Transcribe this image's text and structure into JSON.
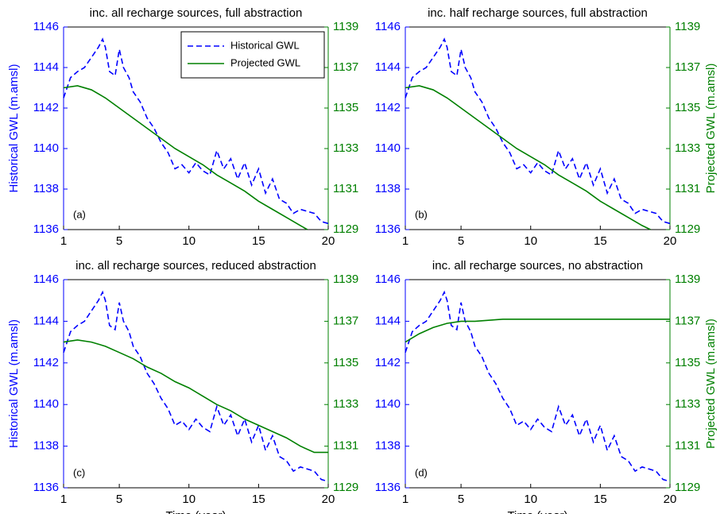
{
  "chart_data": [
    {
      "type": "line",
      "title": "inc. all recharge sources, full abstraction",
      "annotation": "(a)",
      "ylabel": "Historical GWL (m.amsl)",
      "legend": "upper right",
      "xlim": [
        1,
        20
      ],
      "xticks": [
        1,
        5,
        10,
        15,
        20
      ],
      "ylim": [
        1136,
        1146
      ],
      "yticks": [
        1136,
        1138,
        1140,
        1142,
        1144,
        1146
      ],
      "y2lim": [
        1129,
        1139
      ],
      "y2ticks": [
        1129,
        1131,
        1133,
        1135,
        1137,
        1139
      ],
      "series": [
        {
          "name": "Historical GWL",
          "color": "#0000ff",
          "dash": true,
          "axis": "y",
          "x": [
            1,
            1.5,
            2,
            2.5,
            3,
            3.5,
            3.8,
            4,
            4.3,
            4.7,
            5,
            5.3,
            5.7,
            6,
            6.5,
            7,
            7.5,
            8,
            8.5,
            9,
            9.5,
            10,
            10.5,
            11,
            11.5,
            12,
            12.5,
            13,
            13.5,
            14,
            14.5,
            15,
            15.5,
            16,
            16.5,
            17,
            17.5,
            18,
            18.5,
            19,
            19.5,
            20
          ],
          "values": [
            1142.5,
            1143.5,
            1143.8,
            1144.0,
            1144.5,
            1145.0,
            1145.4,
            1145.0,
            1143.8,
            1143.6,
            1144.9,
            1144.0,
            1143.5,
            1142.8,
            1142.3,
            1141.5,
            1141.0,
            1140.3,
            1139.8,
            1139.0,
            1139.2,
            1138.8,
            1139.3,
            1138.9,
            1138.7,
            1139.9,
            1139.0,
            1139.5,
            1138.5,
            1139.3,
            1138.2,
            1139.0,
            1137.8,
            1138.5,
            1137.5,
            1137.3,
            1136.8,
            1137.0,
            1136.9,
            1136.8,
            1136.4,
            1136.3
          ]
        },
        {
          "name": "Projected GWL",
          "color": "#008000",
          "dash": false,
          "axis": "y2",
          "x": [
            1,
            2,
            3,
            4,
            5,
            6,
            7,
            8,
            9,
            10,
            11,
            12,
            13,
            14,
            15,
            16,
            17,
            18,
            18.5
          ],
          "values": [
            1136.0,
            1136.1,
            1135.9,
            1135.5,
            1135.0,
            1134.5,
            1134.0,
            1133.5,
            1133.0,
            1132.6,
            1132.2,
            1131.7,
            1131.3,
            1130.9,
            1130.4,
            1130.0,
            1129.6,
            1129.2,
            1129.0
          ]
        }
      ]
    },
    {
      "type": "line",
      "title": "inc. half recharge sources, full abstraction",
      "annotation": "(b)",
      "y2label": "Projected GWL (m.amsl)",
      "xlim": [
        1,
        20
      ],
      "xticks": [
        1,
        5,
        10,
        15,
        20
      ],
      "ylim": [
        1136,
        1146
      ],
      "yticks": [
        1136,
        1138,
        1140,
        1142,
        1144,
        1146
      ],
      "y2lim": [
        1129,
        1139
      ],
      "y2ticks": [
        1129,
        1131,
        1133,
        1135,
        1137,
        1139
      ],
      "series": [
        {
          "color": "#0000ff",
          "dash": true,
          "axis": "y",
          "x": [
            1,
            1.5,
            2,
            2.5,
            3,
            3.5,
            3.8,
            4,
            4.3,
            4.7,
            5,
            5.3,
            5.7,
            6,
            6.5,
            7,
            7.5,
            8,
            8.5,
            9,
            9.5,
            10,
            10.5,
            11,
            11.5,
            12,
            12.5,
            13,
            13.5,
            14,
            14.5,
            15,
            15.5,
            16,
            16.5,
            17,
            17.5,
            18,
            18.5,
            19,
            19.5,
            20
          ],
          "values": [
            1142.5,
            1143.5,
            1143.8,
            1144.0,
            1144.5,
            1145.0,
            1145.4,
            1145.0,
            1143.8,
            1143.6,
            1144.9,
            1144.0,
            1143.5,
            1142.8,
            1142.3,
            1141.5,
            1141.0,
            1140.3,
            1139.8,
            1139.0,
            1139.2,
            1138.8,
            1139.3,
            1138.9,
            1138.7,
            1139.9,
            1139.0,
            1139.5,
            1138.5,
            1139.3,
            1138.2,
            1139.0,
            1137.8,
            1138.5,
            1137.5,
            1137.3,
            1136.8,
            1137.0,
            1136.9,
            1136.8,
            1136.4,
            1136.3
          ]
        },
        {
          "color": "#008000",
          "dash": false,
          "axis": "y2",
          "x": [
            1,
            2,
            3,
            4,
            5,
            6,
            7,
            8,
            9,
            10,
            11,
            12,
            13,
            14,
            15,
            16,
            17,
            18,
            18.6
          ],
          "values": [
            1136.0,
            1136.1,
            1135.9,
            1135.5,
            1135.0,
            1134.5,
            1134.0,
            1133.5,
            1133.0,
            1132.6,
            1132.2,
            1131.7,
            1131.3,
            1130.9,
            1130.4,
            1130.0,
            1129.6,
            1129.2,
            1129.0
          ]
        }
      ]
    },
    {
      "type": "line",
      "title": "inc. all recharge sources, reduced abstraction",
      "annotation": "(c)",
      "ylabel": "Historical GWL (m.amsl)",
      "xlabel": "Time (year)",
      "xlim": [
        1,
        20
      ],
      "xticks": [
        1,
        5,
        10,
        15,
        20
      ],
      "ylim": [
        1136,
        1146
      ],
      "yticks": [
        1136,
        1138,
        1140,
        1142,
        1144,
        1146
      ],
      "y2lim": [
        1129,
        1139
      ],
      "y2ticks": [
        1129,
        1131,
        1133,
        1135,
        1137,
        1139
      ],
      "series": [
        {
          "color": "#0000ff",
          "dash": true,
          "axis": "y",
          "x": [
            1,
            1.5,
            2,
            2.5,
            3,
            3.5,
            3.8,
            4,
            4.3,
            4.7,
            5,
            5.3,
            5.7,
            6,
            6.5,
            7,
            7.5,
            8,
            8.5,
            9,
            9.5,
            10,
            10.5,
            11,
            11.5,
            12,
            12.5,
            13,
            13.5,
            14,
            14.5,
            15,
            15.5,
            16,
            16.5,
            17,
            17.5,
            18,
            18.5,
            19,
            19.5,
            20
          ],
          "values": [
            1142.5,
            1143.5,
            1143.8,
            1144.0,
            1144.5,
            1145.0,
            1145.4,
            1145.0,
            1143.8,
            1143.6,
            1144.9,
            1144.0,
            1143.5,
            1142.8,
            1142.3,
            1141.5,
            1141.0,
            1140.3,
            1139.8,
            1139.0,
            1139.2,
            1138.8,
            1139.3,
            1138.9,
            1138.7,
            1139.9,
            1139.0,
            1139.5,
            1138.5,
            1139.3,
            1138.2,
            1139.0,
            1137.8,
            1138.5,
            1137.5,
            1137.3,
            1136.8,
            1137.0,
            1136.9,
            1136.8,
            1136.4,
            1136.3
          ]
        },
        {
          "color": "#008000",
          "dash": false,
          "axis": "y2",
          "x": [
            1,
            2,
            3,
            4,
            5,
            6,
            7,
            8,
            9,
            10,
            11,
            12,
            13,
            14,
            15,
            16,
            17,
            18,
            19,
            20
          ],
          "values": [
            1136.0,
            1136.1,
            1136.0,
            1135.8,
            1135.5,
            1135.2,
            1134.8,
            1134.5,
            1134.1,
            1133.8,
            1133.4,
            1133.0,
            1132.7,
            1132.3,
            1132.0,
            1131.7,
            1131.4,
            1131.0,
            1130.7,
            1130.7
          ]
        }
      ]
    },
    {
      "type": "line",
      "title": "inc. all recharge sources, no abstraction",
      "annotation": "(d)",
      "y2label": "Projected GWL (m.amsl)",
      "xlabel": "Time (year)",
      "xlim": [
        1,
        20
      ],
      "xticks": [
        1,
        5,
        10,
        15,
        20
      ],
      "ylim": [
        1136,
        1146
      ],
      "yticks": [
        1136,
        1138,
        1140,
        1142,
        1144,
        1146
      ],
      "y2lim": [
        1129,
        1139
      ],
      "y2ticks": [
        1129,
        1131,
        1133,
        1135,
        1137,
        1139
      ],
      "series": [
        {
          "color": "#0000ff",
          "dash": true,
          "axis": "y",
          "x": [
            1,
            1.5,
            2,
            2.5,
            3,
            3.5,
            3.8,
            4,
            4.3,
            4.7,
            5,
            5.3,
            5.7,
            6,
            6.5,
            7,
            7.5,
            8,
            8.5,
            9,
            9.5,
            10,
            10.5,
            11,
            11.5,
            12,
            12.5,
            13,
            13.5,
            14,
            14.5,
            15,
            15.5,
            16,
            16.5,
            17,
            17.5,
            18,
            18.5,
            19,
            19.5,
            20
          ],
          "values": [
            1142.5,
            1143.5,
            1143.8,
            1144.0,
            1144.5,
            1145.0,
            1145.4,
            1145.0,
            1143.8,
            1143.6,
            1144.9,
            1144.0,
            1143.5,
            1142.8,
            1142.3,
            1141.5,
            1141.0,
            1140.3,
            1139.8,
            1139.0,
            1139.2,
            1138.8,
            1139.3,
            1138.9,
            1138.7,
            1139.9,
            1139.0,
            1139.5,
            1138.5,
            1139.3,
            1138.2,
            1139.0,
            1137.8,
            1138.5,
            1137.5,
            1137.3,
            1136.8,
            1137.0,
            1136.9,
            1136.8,
            1136.4,
            1136.3
          ]
        },
        {
          "color": "#008000",
          "dash": false,
          "axis": "y2",
          "x": [
            1,
            2,
            3,
            4,
            5,
            6,
            8,
            10,
            12,
            15,
            20
          ],
          "values": [
            1136.0,
            1136.4,
            1136.7,
            1136.9,
            1137.0,
            1137.0,
            1137.1,
            1137.1,
            1137.1,
            1137.1,
            1137.1
          ]
        }
      ]
    }
  ]
}
